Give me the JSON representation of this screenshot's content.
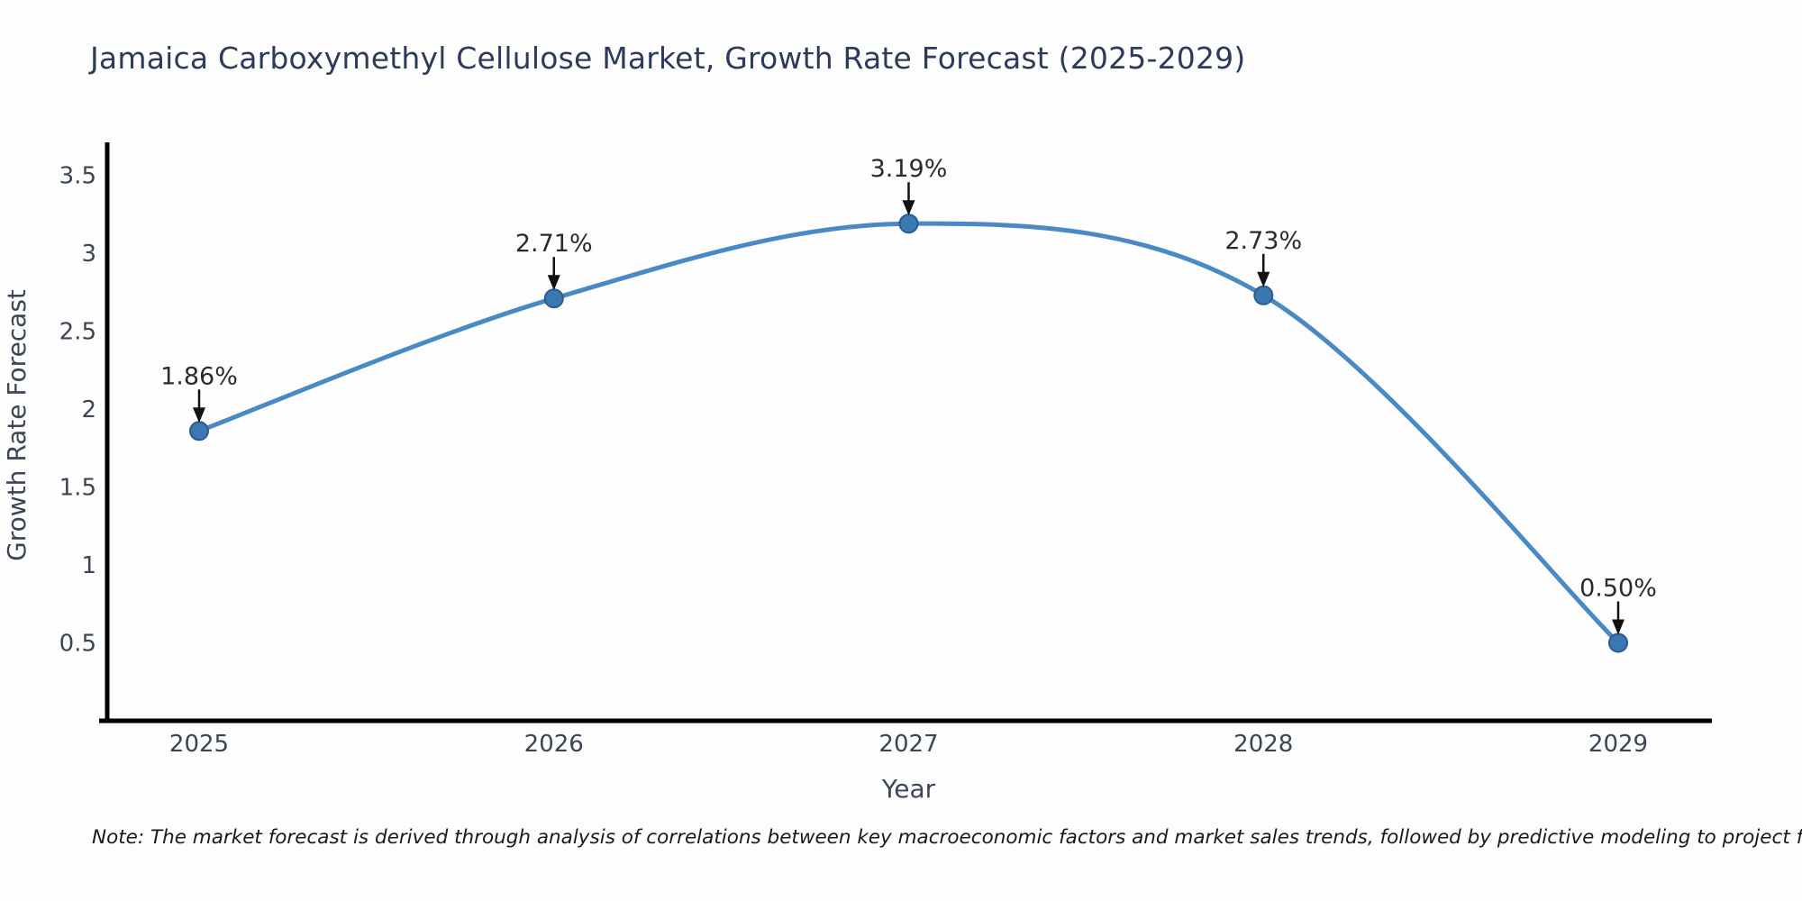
{
  "figure": {
    "background": "#fdfdfd"
  },
  "chart_data": {
    "type": "line",
    "title": "Jamaica Carboxymethyl Cellulose Market, Growth Rate Forecast (2025-2029)",
    "xlabel": "Year",
    "ylabel": "Growth Rate Forecast",
    "x": [
      2025,
      2026,
      2027,
      2028,
      2029
    ],
    "xtick_labels": [
      "2025",
      "2026",
      "2027",
      "2028",
      "2029"
    ],
    "series": [
      {
        "name": "Growth Rate Forecast",
        "values": [
          1.86,
          2.71,
          3.19,
          2.73,
          0.5
        ],
        "point_labels": [
          "1.86%",
          "2.71%",
          "3.19%",
          "2.73%",
          "0.50%"
        ]
      }
    ],
    "yticks": [
      0.5,
      1,
      1.5,
      2,
      2.5,
      3,
      3.5
    ],
    "ytick_labels": [
      "0.5",
      "1",
      "1.5",
      "2",
      "2.5",
      "3",
      "3.5"
    ],
    "ylim": [
      0,
      3.7
    ],
    "grid": false,
    "legend": false,
    "marker": "circle",
    "annotation_style": "value label above point with downward black arrow"
  },
  "footnote": {
    "text": "Note: The market forecast is derived through analysis of correlations between key macroeconomic factors and market sales trends, followed by predictive modeling to project future sales"
  },
  "colors": {
    "line": "#4a8ac4",
    "marker_fill": "#3b78b3",
    "marker_edge": "#2a5d8c",
    "axis_spine": "#000000",
    "heading_text": "#2e3a59",
    "axis_text": "#3a4556",
    "annotation_text": "#2b2b2b",
    "annotation_arrow": "#111111",
    "footnote_text": "#1a1a1a"
  }
}
